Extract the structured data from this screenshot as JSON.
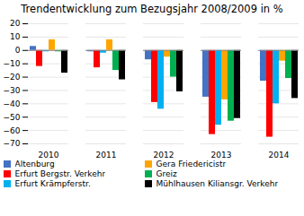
{
  "chart_data": {
    "type": "bar",
    "title": "Trendentwicklung zum Bezugsjahr 2008/2009 in %",
    "categories": [
      "2010",
      "2011",
      "2012",
      "2013",
      "2014"
    ],
    "series": [
      {
        "name": "Altenburg",
        "color": "#4472c4",
        "values": [
          3,
          -1,
          -7,
          -35,
          -23
        ]
      },
      {
        "name": "Erfurt Bergstr. Verkehr",
        "color": "#ff0000",
        "values": [
          -12,
          -13,
          -39,
          -63,
          -65
        ]
      },
      {
        "name": "Erfurt Krämpferstr.",
        "color": "#00b0f0",
        "values": [
          -1,
          -2,
          -44,
          -56,
          -40
        ]
      },
      {
        "name": "Gera Friedericistr",
        "color": "#ffa500",
        "values": [
          8,
          8,
          -5,
          -37,
          -8
        ]
      },
      {
        "name": "Greiz",
        "color": "#00b050",
        "values": [
          -1,
          -15,
          -20,
          -53,
          -21
        ]
      },
      {
        "name": "Mühlhausen Kiliansgr. Verkehr",
        "color": "#000000",
        "values": [
          -17,
          -22,
          -31,
          -51,
          -36
        ]
      }
    ],
    "ylim": [
      -70,
      20
    ],
    "yticks": [
      -70,
      -60,
      -50,
      -40,
      -30,
      -20,
      -10,
      0,
      10,
      20
    ],
    "grid": true,
    "legend": "lower left"
  }
}
